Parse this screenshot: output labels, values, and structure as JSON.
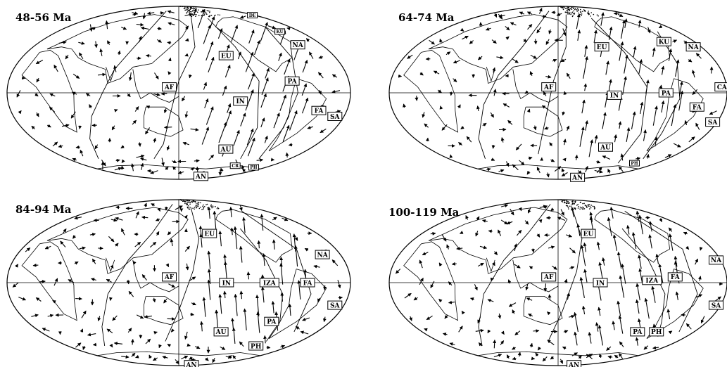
{
  "panels": [
    {
      "title": "48-56 Ma",
      "plates": [
        {
          "label": "EU",
          "lon": 55,
          "lat": 32
        },
        {
          "label": "KU",
          "lon": 150,
          "lat": 55,
          "small": true
        },
        {
          "label": "DE",
          "lon": 175,
          "lat": 74,
          "small": true
        },
        {
          "label": "NA",
          "lon": 150,
          "lat": 42
        },
        {
          "label": "AF",
          "lon": -10,
          "lat": 5
        },
        {
          "label": "IN",
          "lon": 65,
          "lat": -7
        },
        {
          "label": "PA",
          "lon": 120,
          "lat": 10
        },
        {
          "label": "FA",
          "lon": 150,
          "lat": -15
        },
        {
          "label": "SA",
          "lon": 170,
          "lat": -20
        },
        {
          "label": "AU",
          "lon": 65,
          "lat": -50
        },
        {
          "label": "CR",
          "lon": 110,
          "lat": -68,
          "small": true
        },
        {
          "label": "PH",
          "lon": 155,
          "lat": -70,
          "small": true
        },
        {
          "label": "AN",
          "lon": 90,
          "lat": -83
        }
      ]
    },
    {
      "title": "64-74 Ma",
      "plates": [
        {
          "label": "EU",
          "lon": 55,
          "lat": 40
        },
        {
          "label": "KU",
          "lon": 140,
          "lat": 45
        },
        {
          "label": "NA",
          "lon": 170,
          "lat": 40
        },
        {
          "label": "AF",
          "lon": -10,
          "lat": 5
        },
        {
          "label": "IN",
          "lon": 60,
          "lat": -2
        },
        {
          "label": "PA",
          "lon": 115,
          "lat": 0
        },
        {
          "label": "CA",
          "lon": 175,
          "lat": 5
        },
        {
          "label": "FA",
          "lon": 150,
          "lat": -12
        },
        {
          "label": "SA",
          "lon": 175,
          "lat": -25
        },
        {
          "label": "AU",
          "lon": 65,
          "lat": -48
        },
        {
          "label": "PH",
          "lon": 140,
          "lat": -65,
          "small": true
        },
        {
          "label": "AN",
          "lon": 100,
          "lat": -85
        }
      ]
    },
    {
      "title": "84-94 Ma",
      "plates": [
        {
          "label": "EU",
          "lon": 40,
          "lat": 45
        },
        {
          "label": "NA",
          "lon": 160,
          "lat": 25
        },
        {
          "label": "AF",
          "lon": -10,
          "lat": 5
        },
        {
          "label": "IN",
          "lon": 50,
          "lat": 0
        },
        {
          "label": "IZA",
          "lon": 95,
          "lat": 0
        },
        {
          "label": "FA",
          "lon": 135,
          "lat": 0
        },
        {
          "label": "SA",
          "lon": 170,
          "lat": -20
        },
        {
          "label": "PA",
          "lon": 110,
          "lat": -35
        },
        {
          "label": "AU",
          "lon": 55,
          "lat": -45
        },
        {
          "label": "PH",
          "lon": 125,
          "lat": -60
        },
        {
          "label": "AN",
          "lon": 90,
          "lat": -87
        }
      ]
    },
    {
      "title": "100-119 Ma",
      "plates": [
        {
          "label": "EU",
          "lon": 40,
          "lat": 45
        },
        {
          "label": "NA",
          "lon": 175,
          "lat": 20
        },
        {
          "label": "AF",
          "lon": -10,
          "lat": 5
        },
        {
          "label": "IN",
          "lon": 45,
          "lat": 0
        },
        {
          "label": "IZA",
          "lon": 100,
          "lat": 2
        },
        {
          "label": "FA",
          "lon": 125,
          "lat": 5
        },
        {
          "label": "SA",
          "lon": 175,
          "lat": -20
        },
        {
          "label": "PA",
          "lon": 105,
          "lat": -45
        },
        {
          "label": "PH",
          "lon": 130,
          "lat": -45
        },
        {
          "label": "AN",
          "lon": 115,
          "lat": -87
        }
      ]
    }
  ]
}
